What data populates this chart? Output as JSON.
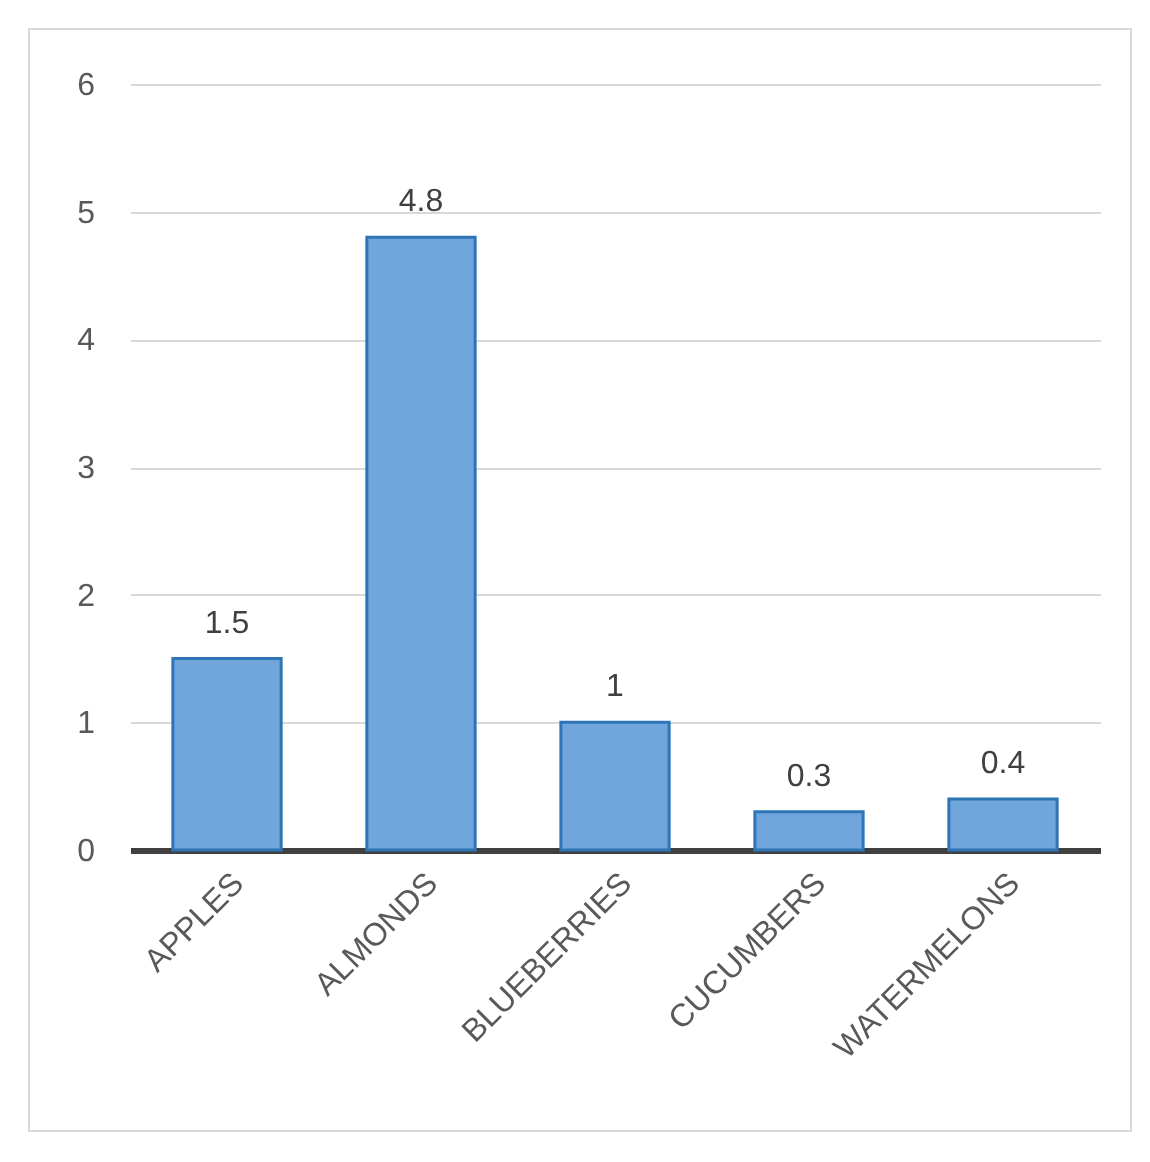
{
  "chart_data": {
    "type": "bar",
    "categories": [
      "APPLES",
      "ALMONDS",
      "BLUEBERRIES",
      "CUCUMBERS",
      "WATERMELONS"
    ],
    "values": [
      1.5,
      4.8,
      1,
      0.3,
      0.4
    ],
    "color": "#70a6dc",
    "ylim": [
      0,
      6
    ],
    "yticks": [
      0,
      1,
      2,
      3,
      4,
      5,
      6
    ],
    "grid": "y",
    "data_labels": true
  }
}
